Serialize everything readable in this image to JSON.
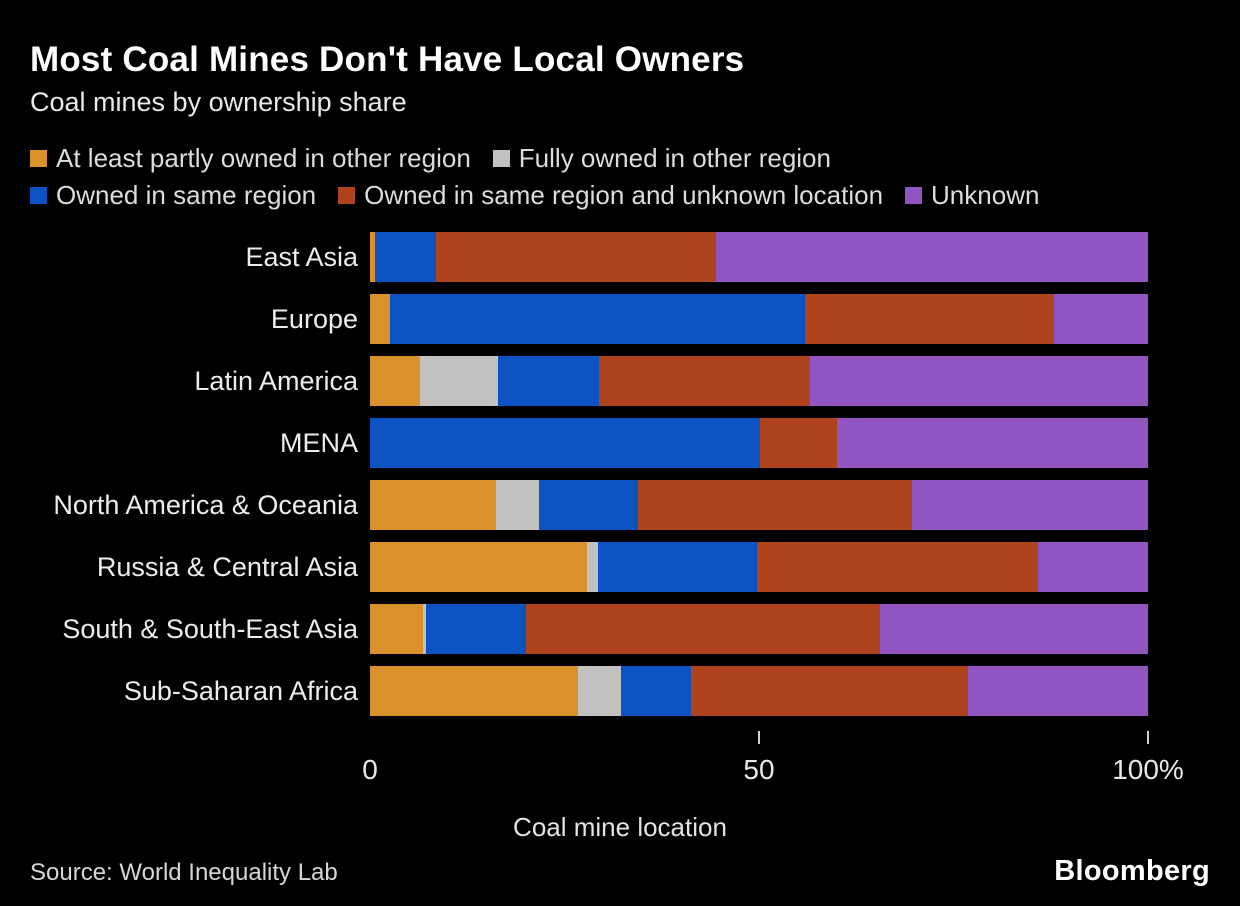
{
  "title": "Most Coal Mines Don't Have Local Owners",
  "subtitle": "Coal mines by ownership share",
  "xlabel": "Coal mine location",
  "source": "Source: World Inequality Lab",
  "brand": "Bloomberg",
  "chart_data": {
    "type": "bar",
    "orientation": "horizontal-stacked",
    "xlim": [
      0,
      100
    ],
    "xlabel": "Coal mine location",
    "x_ticks": [
      {
        "label": "0",
        "value": 0,
        "mark": false
      },
      {
        "label": "50",
        "value": 50,
        "mark": true
      },
      {
        "label": "100%",
        "value": 100,
        "mark": true
      }
    ],
    "legend_position": "top",
    "legend_rows": [
      [
        0,
        1
      ],
      [
        2,
        3,
        4
      ]
    ],
    "categories": [
      "East Asia",
      "Europe",
      "Latin America",
      "MENA",
      "North America & Oceania",
      "Russia & Central Asia",
      "South & South-East Asia",
      "Sub-Saharan Africa"
    ],
    "series": [
      {
        "name": "At least partly owned in other region",
        "color": "#D9912C",
        "values": [
          0.7,
          2.6,
          6.4,
          0,
          16.2,
          27.9,
          6.8,
          26.7
        ]
      },
      {
        "name": "Fully owned in other region",
        "color": "#C2C1BF",
        "values": [
          0,
          0,
          10.0,
          0,
          5.5,
          1.4,
          0.4,
          5.5
        ]
      },
      {
        "name": "Owned in same region",
        "color": "#0C52C2",
        "values": [
          7.8,
          53.3,
          13.1,
          50.1,
          12.8,
          20.4,
          12.9,
          9.1
        ]
      },
      {
        "name": "Owned in same region and unknown location",
        "color": "#AE431E",
        "values": [
          36.0,
          32.0,
          27.0,
          9.9,
          35.2,
          36.2,
          45.4,
          35.6
        ]
      },
      {
        "name": "Unknown",
        "color": "#9155C2",
        "values": [
          55.5,
          12.1,
          43.5,
          40.0,
          30.3,
          14.1,
          34.5,
          23.1
        ]
      }
    ]
  }
}
